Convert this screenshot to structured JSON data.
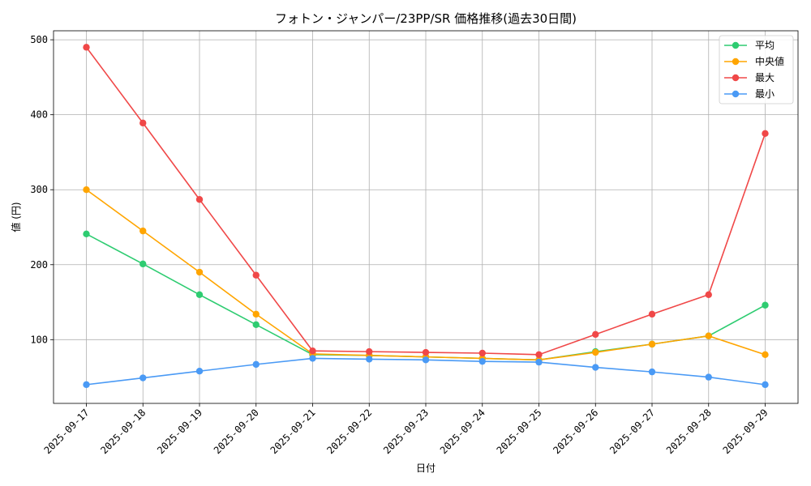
{
  "chart_data": {
    "type": "line",
    "title": "フォトン・ジャンパー/23PP/SR 価格推移(過去30日間)",
    "xlabel": "日付",
    "ylabel": "値 (円)",
    "categories": [
      "2025-09-17",
      "2025-09-18",
      "2025-09-19",
      "2025-09-20",
      "2025-09-21",
      "2025-09-22",
      "2025-09-23",
      "2025-09-24",
      "2025-09-25",
      "2025-09-26",
      "2025-09-27",
      "2025-09-28",
      "2025-09-29"
    ],
    "ylim": [
      15,
      512
    ],
    "yticks": [
      100,
      200,
      300,
      400,
      500
    ],
    "grid": true,
    "legend_position": "top-right",
    "series": [
      {
        "name": "平均",
        "color": "#2ecc71",
        "values": [
          241,
          201,
          160,
          120,
          80,
          79,
          77,
          75,
          73,
          84,
          94,
          105,
          146
        ]
      },
      {
        "name": "中央値",
        "color": "#ffa500",
        "values": [
          300,
          245,
          190,
          134,
          81,
          79,
          77,
          75,
          73,
          83,
          94,
          105,
          80
        ]
      },
      {
        "name": "最大",
        "color": "#f04848",
        "values": [
          490,
          389,
          287,
          186,
          85,
          84,
          83,
          82,
          80,
          107,
          134,
          160,
          375
        ]
      },
      {
        "name": "最小",
        "color": "#4a9af5",
        "values": [
          40,
          49,
          58,
          67,
          75,
          74,
          73,
          71,
          70,
          63,
          57,
          50,
          40
        ]
      }
    ]
  }
}
